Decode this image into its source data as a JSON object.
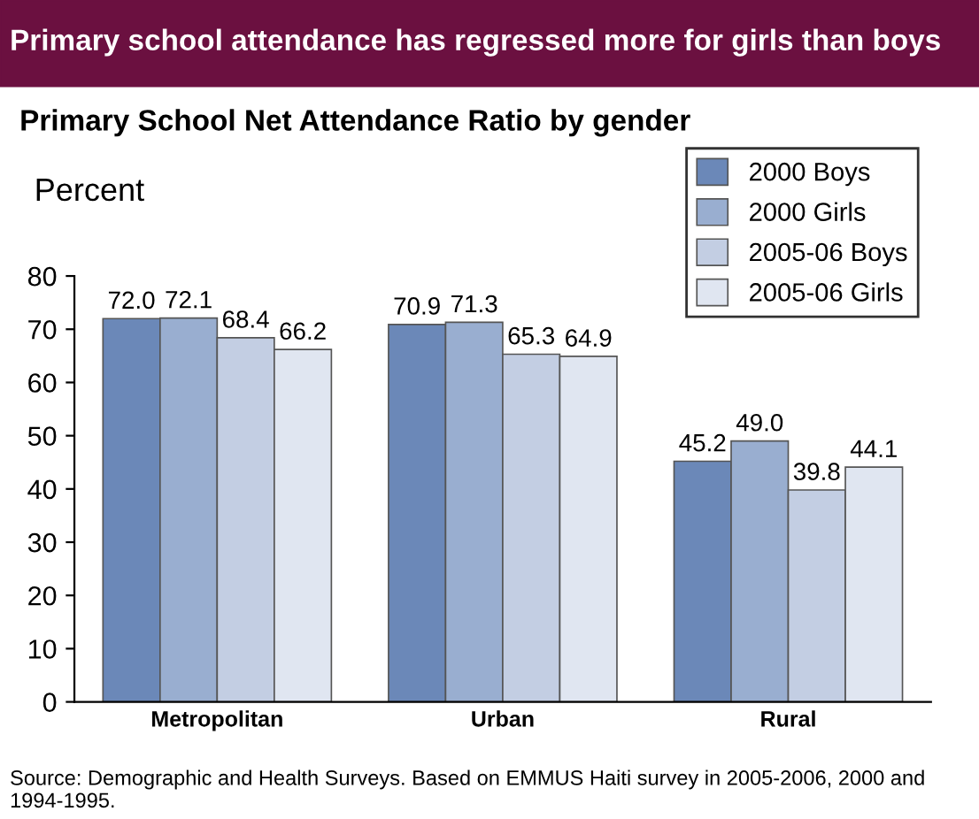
{
  "chart_data": {
    "type": "bar",
    "title": "Primary school attendance has regressed more for girls than boys",
    "subtitle": "Primary School Net Attendance Ratio by gender",
    "ylabel": "Percent",
    "categories": [
      "Metropolitan",
      "Urban",
      "Rural"
    ],
    "series": [
      {
        "name": "2000 Boys",
        "color": "#6b88b8",
        "values": [
          72.0,
          70.9,
          45.2
        ],
        "value_labels": [
          "72.0",
          "70.9",
          "45.2"
        ]
      },
      {
        "name": "2000 Girls",
        "color": "#99aed0",
        "values": [
          72.1,
          71.3,
          49.0
        ],
        "value_labels": [
          "72.1",
          "71.3",
          "49.0"
        ]
      },
      {
        "name": "2005-06 Boys",
        "color": "#c3cee3",
        "values": [
          68.4,
          65.3,
          39.8
        ],
        "value_labels": [
          "68.4",
          "65.3",
          "39.8"
        ]
      },
      {
        "name": "2005-06 Girls",
        "color": "#e0e6f1",
        "values": [
          66.2,
          64.9,
          44.1
        ],
        "value_labels": [
          "66.2",
          "64.9",
          "44.1"
        ]
      }
    ],
    "ylim": [
      0,
      80
    ],
    "yticks": [
      0,
      10,
      20,
      30,
      40,
      50,
      60,
      70,
      80
    ],
    "grid": false,
    "legend": "top right",
    "annotations": [
      "Source: Demographic and Health Surveys. Based on EMMUS Haiti survey in 2005-2006, 2000 and 1994-1995."
    ]
  }
}
